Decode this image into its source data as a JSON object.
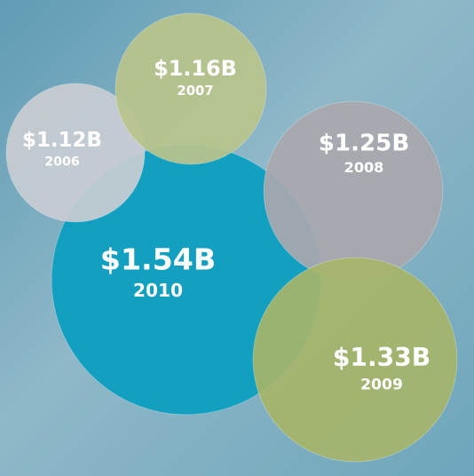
{
  "chart_data": {
    "type": "bubble",
    "categories": [
      "2006",
      "2007",
      "2008",
      "2009",
      "2010"
    ],
    "values": [
      1.12,
      1.16,
      1.25,
      1.33,
      1.54
    ],
    "value_labels": [
      "$1.12B",
      "$1.16B",
      "$1.25B",
      "$1.33B",
      "$1.54B"
    ],
    "colors": [
      "#c8ccd2",
      "#b8c48b",
      "#a8a8ad",
      "#a6b56a",
      "#0a9dc0"
    ]
  }
}
